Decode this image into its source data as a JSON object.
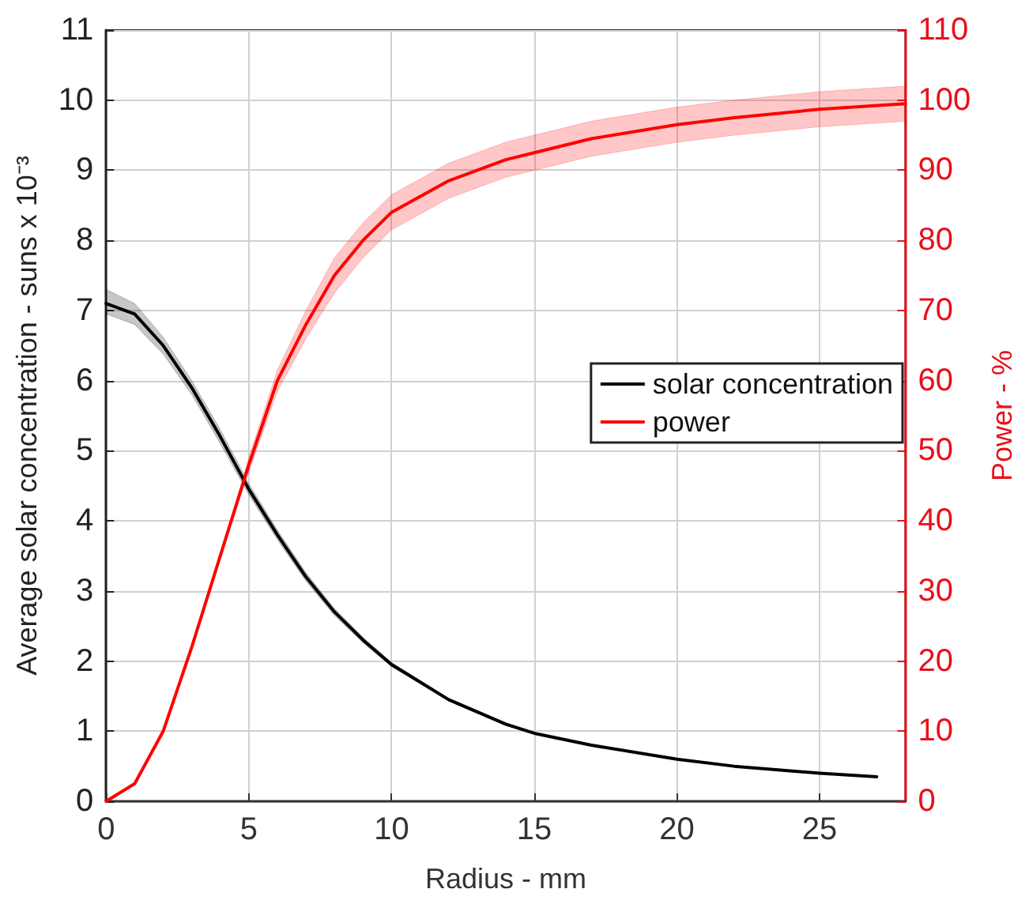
{
  "chart_data": {
    "type": "line",
    "xlabel": "Radius - mm",
    "ylabel": "Average solar concentration - suns x 10⁻³",
    "y2label": "Power - %",
    "xlim": [
      0,
      28
    ],
    "xticks": [
      0,
      5,
      10,
      15,
      20,
      25
    ],
    "ylim": [
      0,
      11
    ],
    "yticks": [
      0,
      1,
      2,
      3,
      4,
      5,
      6,
      7,
      8,
      9,
      10,
      11
    ],
    "y2lim": [
      0,
      110
    ],
    "y2ticks": [
      0,
      10,
      20,
      30,
      40,
      50,
      60,
      70,
      80,
      90,
      100,
      110
    ],
    "grid": true,
    "legend": "right",
    "marker": "none",
    "line_style": "solid",
    "series": [
      {
        "name": "solar concentration",
        "color": "#000000",
        "x": [
          0,
          1,
          2,
          3,
          4,
          5,
          6,
          7,
          8,
          9,
          10,
          12,
          14,
          15,
          17,
          20,
          22,
          25,
          27
        ],
        "values": [
          7.1,
          6.95,
          6.5,
          5.9,
          5.2,
          4.45,
          3.8,
          3.2,
          2.7,
          2.3,
          1.95,
          1.45,
          1.1,
          0.97,
          0.8,
          0.6,
          0.5,
          0.4,
          0.35
        ],
        "lower": [
          6.95,
          6.8,
          6.38,
          5.8,
          5.1,
          4.37,
          3.73,
          3.14,
          2.65,
          2.26,
          1.92,
          1.43,
          1.08,
          0.96,
          0.79,
          0.59,
          0.49,
          0.39,
          0.34
        ],
        "upper": [
          7.3,
          7.1,
          6.62,
          6.0,
          5.3,
          4.53,
          3.87,
          3.26,
          2.75,
          2.34,
          1.98,
          1.47,
          1.12,
          0.98,
          0.81,
          0.61,
          0.51,
          0.41,
          0.36
        ]
      },
      {
        "name": "power",
        "color": "#ff0000",
        "axis": "y2",
        "x": [
          0,
          1,
          2,
          3,
          4,
          5,
          6,
          7,
          8,
          9,
          10,
          12,
          14,
          15,
          17,
          20,
          22,
          25,
          28
        ],
        "values": [
          0,
          2.5,
          10,
          22,
          35,
          48,
          60,
          68,
          75,
          80,
          84,
          88.5,
          91.5,
          92.5,
          94.5,
          96.5,
          97.5,
          98.7,
          99.5
        ],
        "lower": [
          0,
          2.5,
          10,
          22,
          35,
          47,
          58.5,
          66,
          72.5,
          77.5,
          81.5,
          86,
          89,
          90,
          92,
          94,
          95,
          96.2,
          97
        ],
        "upper": [
          0,
          2.5,
          10,
          22,
          35,
          49,
          61.5,
          70,
          77.5,
          82.5,
          86.5,
          91,
          94,
          95,
          97,
          99,
          100,
          101.2,
          102
        ]
      }
    ]
  }
}
